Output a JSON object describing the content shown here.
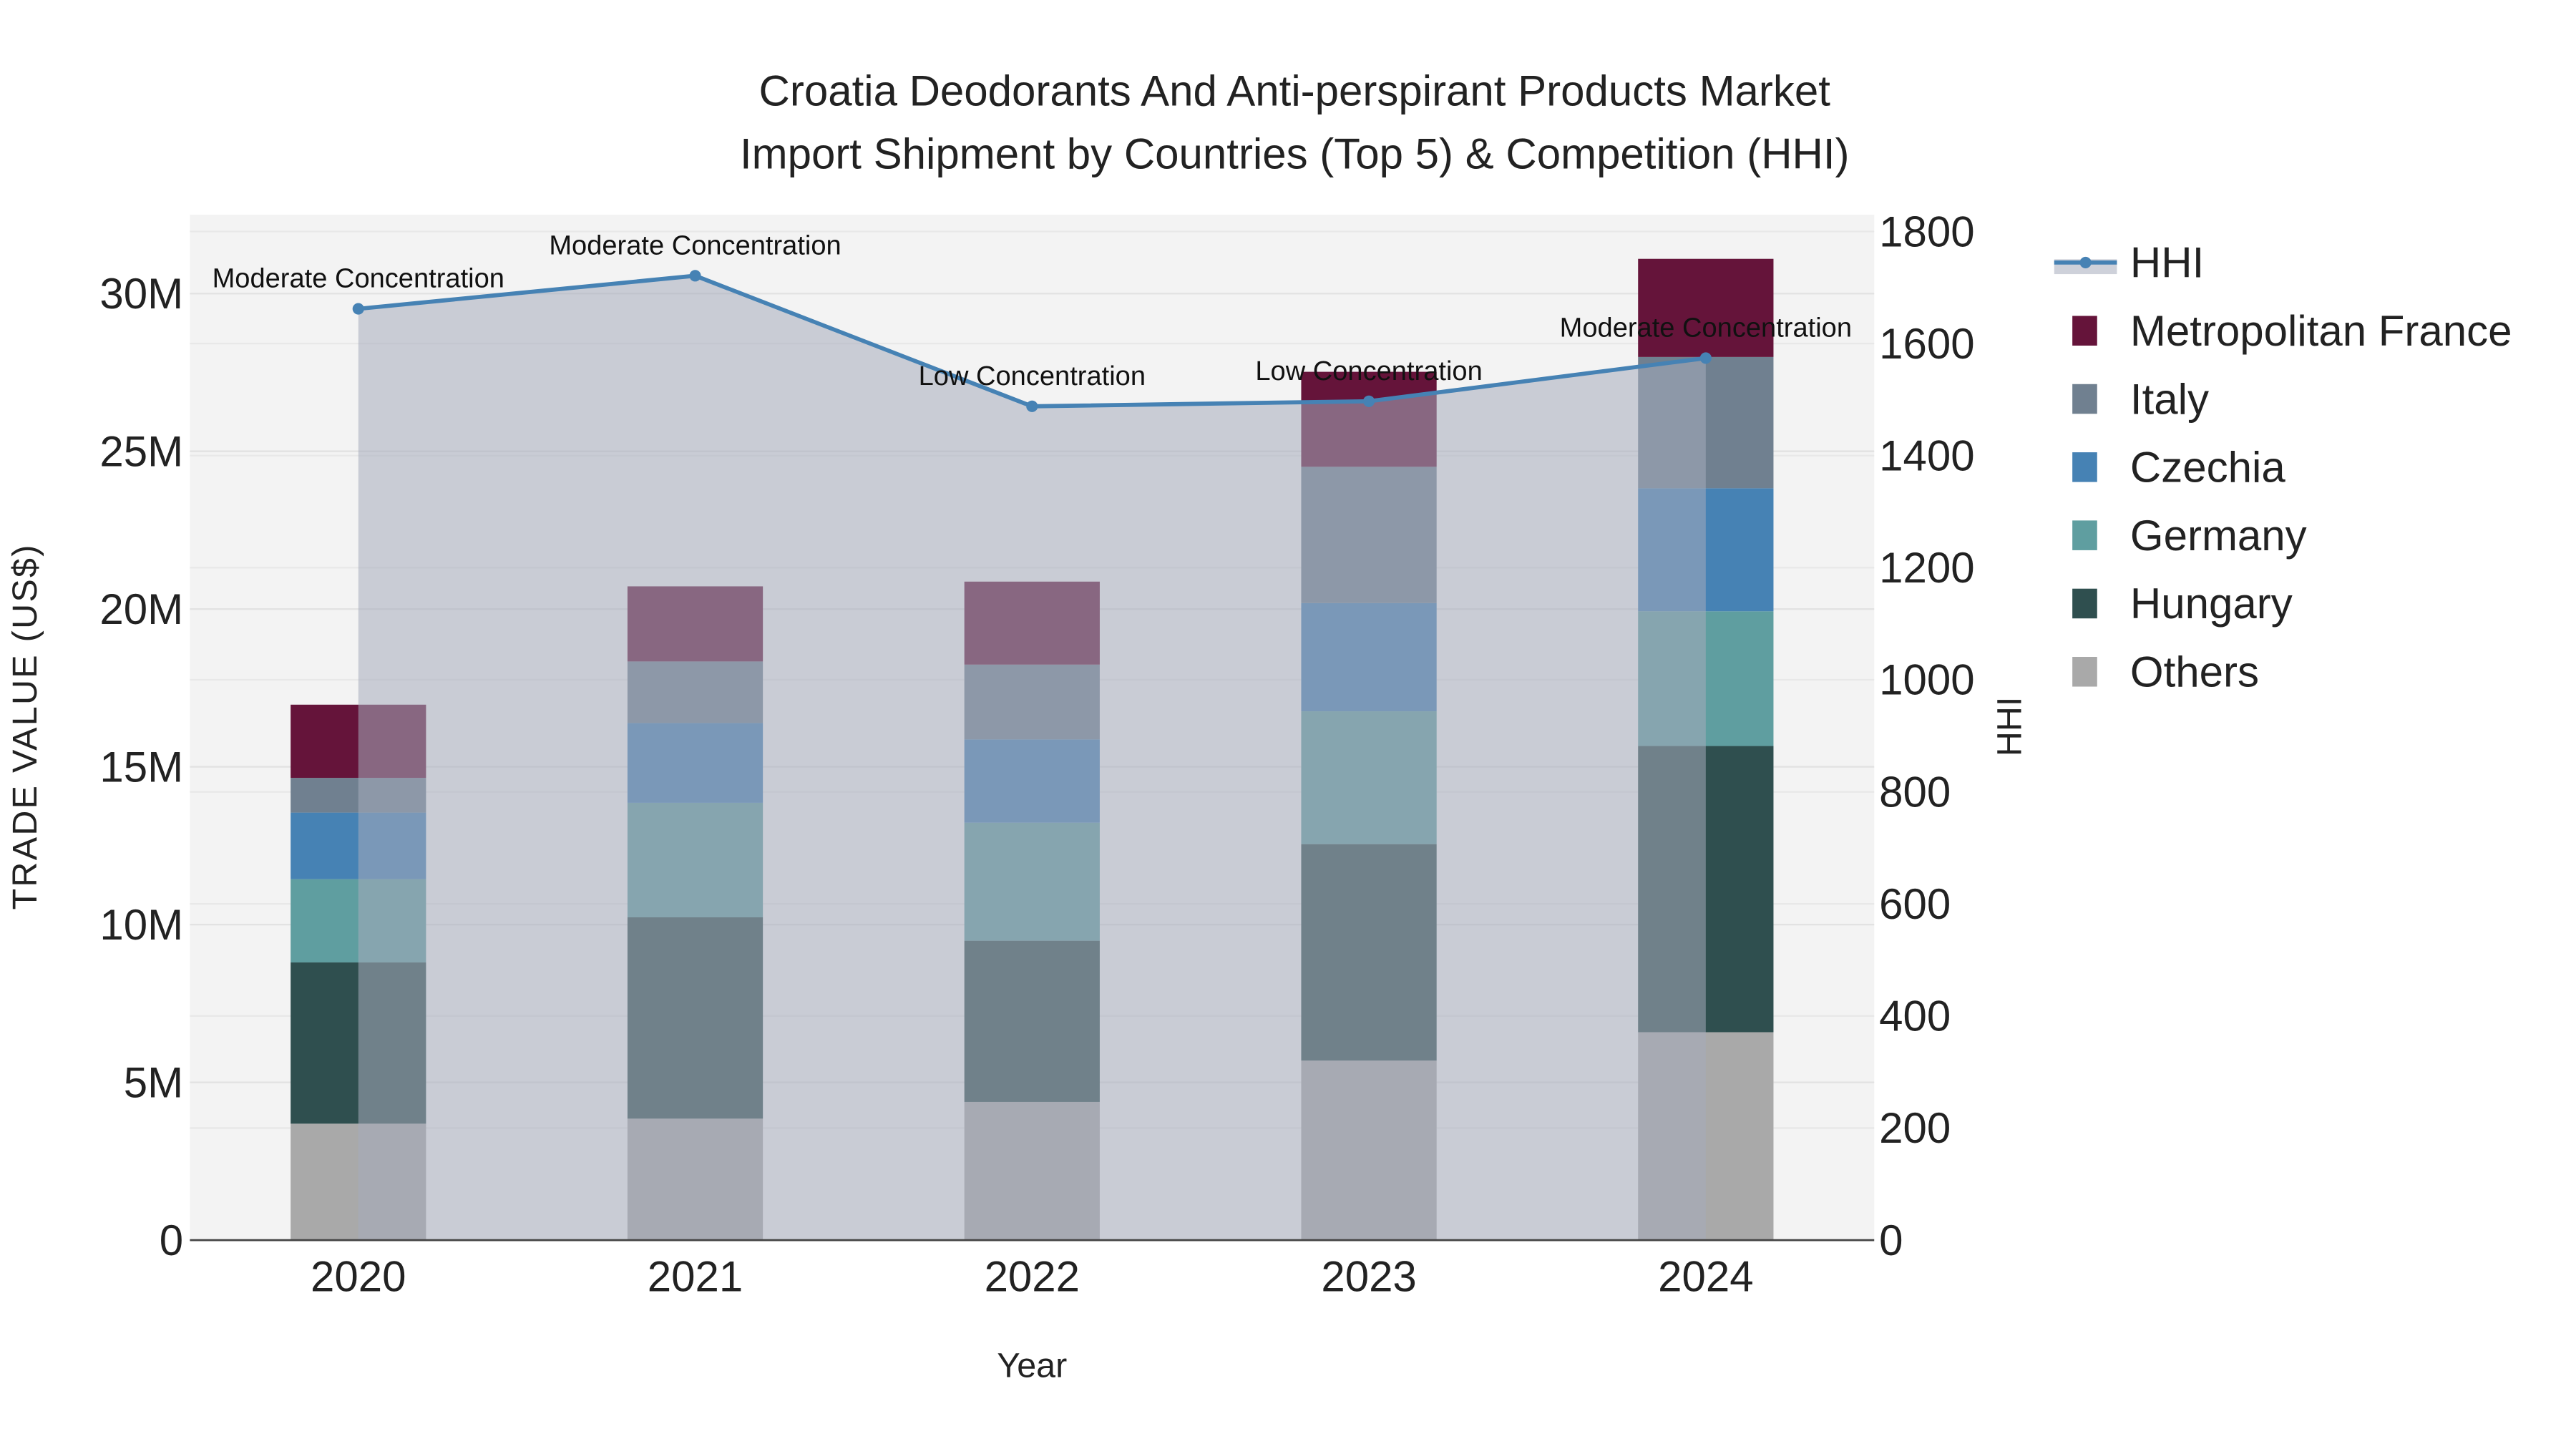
{
  "chart_data": {
    "type": "bar",
    "title_line1": "Croatia Deodorants And Anti-perspirant Products Market",
    "title_line2": "Import Shipment by Countries (Top 5) & Competition (HHI)",
    "xlabel": "Year",
    "ylabel": "TRADE VALUE (US$)",
    "y2label": "HHI",
    "categories": [
      "2020",
      "2021",
      "2022",
      "2023",
      "2024"
    ],
    "ylim": [
      0,
      32500000
    ],
    "y_ticks": [
      0,
      5000000,
      10000000,
      15000000,
      20000000,
      25000000,
      30000000
    ],
    "y_tick_labels": [
      "0",
      "5M",
      "10M",
      "15M",
      "20M",
      "25M",
      "30M"
    ],
    "y2lim": [
      0,
      1830
    ],
    "y2_ticks": [
      0,
      200,
      400,
      600,
      800,
      1000,
      1200,
      1400,
      1600,
      1800
    ],
    "y2_tick_labels": [
      "0",
      "200",
      "400",
      "600",
      "800",
      "1000",
      "1200",
      "1400",
      "1600",
      "1800"
    ],
    "series": [
      {
        "name": "Others",
        "color": "#a9a9a9",
        "values": [
          3690000,
          3850000,
          4380000,
          5690000,
          6590000
        ]
      },
      {
        "name": "Hungary",
        "color": "#2f4f4f",
        "values": [
          5110000,
          6380000,
          5110000,
          6860000,
          9070000
        ]
      },
      {
        "name": "Germany",
        "color": "#5f9ea0",
        "values": [
          2640000,
          3630000,
          3740000,
          4210000,
          4270000
        ]
      },
      {
        "name": "Czechia",
        "color": "#4682b4",
        "values": [
          2110000,
          2530000,
          2640000,
          3430000,
          3900000
        ]
      },
      {
        "name": "Italy",
        "color": "#708090",
        "values": [
          1100000,
          1950000,
          2370000,
          4320000,
          4160000
        ]
      },
      {
        "name": "Metropolitan France",
        "color": "#65143a",
        "values": [
          2320000,
          2380000,
          2630000,
          3010000,
          3110000
        ]
      }
    ],
    "hhi": {
      "name": "HHI",
      "color": "#4682b4",
      "values": [
        1662,
        1721,
        1488,
        1497,
        1574
      ],
      "labels": [
        "Moderate Concentration",
        "Moderate Concentration",
        "Low Concentration",
        "Low Concentration",
        "Moderate Concentration"
      ]
    },
    "legend_order": [
      "HHI",
      "Metropolitan France",
      "Italy",
      "Czechia",
      "Germany",
      "Hungary",
      "Others"
    ],
    "legend_placement": "right",
    "grid": true
  }
}
